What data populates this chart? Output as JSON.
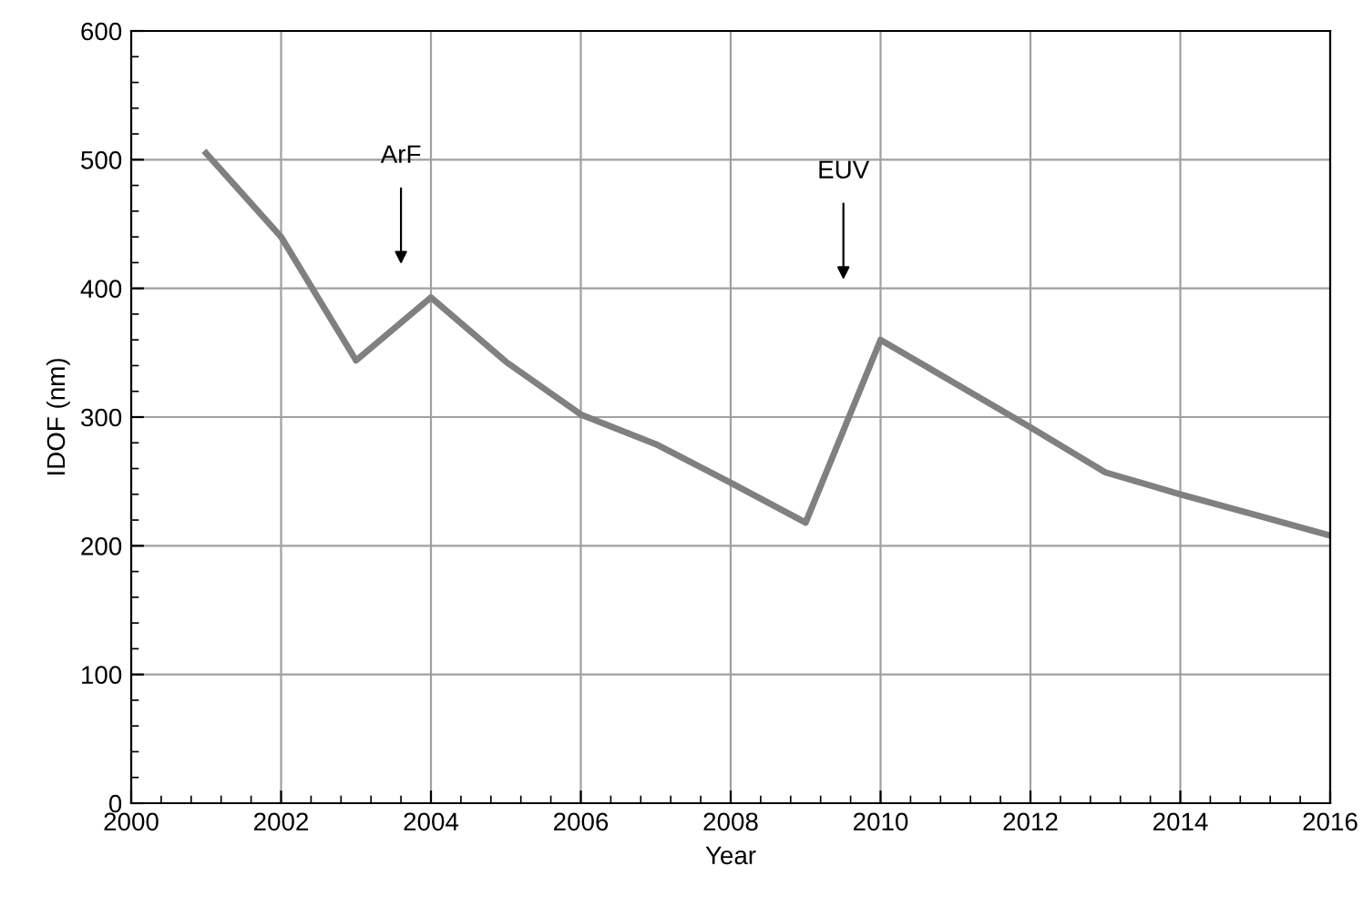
{
  "chart_data": {
    "type": "line",
    "xlabel": "Year",
    "ylabel": "IDOF (nm)",
    "x": [
      2001,
      2002,
      2003,
      2004,
      2005,
      2006,
      2007,
      2008,
      2009,
      2010,
      2011,
      2012,
      2013,
      2014,
      2015,
      2016
    ],
    "series": [
      {
        "color": "#808080",
        "values": [
          505,
          440,
          344,
          393,
          343,
          302,
          279,
          249,
          218,
          360,
          326,
          292,
          257,
          240,
          224,
          208
        ]
      }
    ],
    "xlim": [
      2000,
      2016
    ],
    "xticks": [
      2000,
      2002,
      2004,
      2006,
      2008,
      2010,
      2012,
      2014,
      2016
    ],
    "ylim": [
      0,
      600
    ],
    "yticks": [
      0,
      100,
      200,
      300,
      400,
      500,
      600
    ],
    "grid": true,
    "marker": "none",
    "line_style": "solid",
    "annotations": [
      "ArF",
      "EUV"
    ]
  }
}
